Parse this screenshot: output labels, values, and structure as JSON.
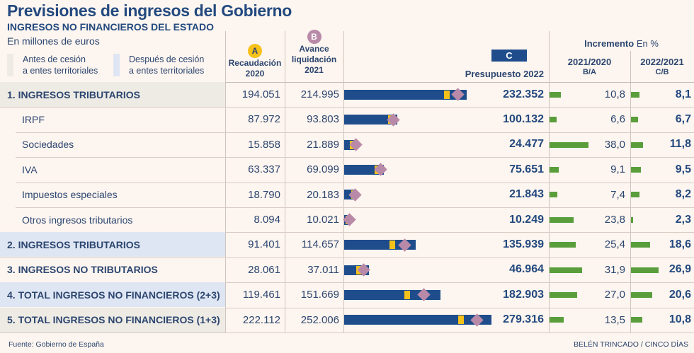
{
  "header": {
    "title": "Previsiones de ingresos del Gobierno",
    "subtitle": "INGRESOS NO FINANCIEROS DEL ESTADO",
    "units": "En millones de euros"
  },
  "legend": [
    {
      "label_line1": "Antes de cesión",
      "label_line2": "a entes territoriales",
      "color": "#eeebe4"
    },
    {
      "label_line1": "Después de cesión",
      "label_line2": "a entes territoriales",
      "color": "#dfe6f3"
    }
  ],
  "columns": {
    "a": {
      "badge": "A",
      "line1": "Recaudación",
      "line2": "2020",
      "color": "#f6c21a"
    },
    "b": {
      "badge": "B",
      "line1": "Avance",
      "line2": "liquidación",
      "line3": "2021",
      "color": "#b98aa8"
    },
    "c": {
      "badge": "C",
      "label": "Presupuesto 2022",
      "color": "#1f4d8c"
    },
    "increment": {
      "title_bold": "Incremento",
      "title_unit": "En %"
    },
    "pct1": {
      "line1": "2021/2020",
      "line2": "B/A"
    },
    "pct2": {
      "line1": "2022/2021",
      "line2": "C/B"
    }
  },
  "chart_data": {
    "type": "table",
    "title": "Previsiones de ingresos del Gobierno",
    "subtitle": "INGRESOS NO FINANCIEROS DEL ESTADO",
    "units": "millones de euros",
    "series": [
      {
        "name": "Recaudación 2020 (A)",
        "key": "a"
      },
      {
        "name": "Avance liquidación 2021 (B)",
        "key": "b"
      },
      {
        "name": "Presupuesto 2022 (C)",
        "key": "c"
      },
      {
        "name": "Incremento 2021/2020 B/A (%)",
        "key": "pct1"
      },
      {
        "name": "Incremento 2022/2021 C/B (%)",
        "key": "pct2"
      }
    ],
    "rows": [
      {
        "label": "1. INGRESOS TRIBUTARIOS",
        "style": "main",
        "bg": "before",
        "a": 194051,
        "b": 214995,
        "c": 232352,
        "a_text": "194.051",
        "b_text": "214.995",
        "c_text": "232.352",
        "pct1": 10.8,
        "pct2": 8.1,
        "pct1_text": "10,8",
        "pct2_text": "8,1"
      },
      {
        "label": "IRPF",
        "style": "sub",
        "bg": "none",
        "a": 87972,
        "b": 93803,
        "c": 100132,
        "a_text": "87.972",
        "b_text": "93.803",
        "c_text": "100.132",
        "pct1": 6.6,
        "pct2": 6.7,
        "pct1_text": "6,6",
        "pct2_text": "6,7"
      },
      {
        "label": "Sociedades",
        "style": "sub",
        "bg": "none",
        "a": 15858,
        "b": 21889,
        "c": 24477,
        "a_text": "15.858",
        "b_text": "21.889",
        "c_text": "24.477",
        "pct1": 38.0,
        "pct2": 11.8,
        "pct1_text": "38,0",
        "pct2_text": "11,8"
      },
      {
        "label": "IVA",
        "style": "sub",
        "bg": "none",
        "a": 63337,
        "b": 69099,
        "c": 75651,
        "a_text": "63.337",
        "b_text": "69.099",
        "c_text": "75.651",
        "pct1": 9.1,
        "pct2": 9.5,
        "pct1_text": "9,1",
        "pct2_text": "9,5"
      },
      {
        "label": "Impuestos especiales",
        "style": "sub",
        "bg": "none",
        "a": 18790,
        "b": 20183,
        "c": 21843,
        "a_text": "18.790",
        "b_text": "20.183",
        "c_text": "21.843",
        "pct1": 7.4,
        "pct2": 8.2,
        "pct1_text": "7,4",
        "pct2_text": "8,2"
      },
      {
        "label": "Otros ingresos tributarios",
        "style": "sub",
        "bg": "none",
        "a": 8094,
        "b": 10021,
        "c": 10249,
        "a_text": "8.094",
        "b_text": "10.021",
        "c_text": "10.249",
        "pct1": 23.8,
        "pct2": 2.3,
        "pct1_text": "23,8",
        "pct2_text": "2,3"
      },
      {
        "label": "2. INGRESOS TRIBUTARIOS",
        "style": "main",
        "bg": "after",
        "a": 91401,
        "b": 114657,
        "c": 135939,
        "a_text": "91.401",
        "b_text": "114.657",
        "c_text": "135.939",
        "pct1": 25.4,
        "pct2": 18.6,
        "pct1_text": "25,4",
        "pct2_text": "18,6"
      },
      {
        "label": "3. INGRESOS NO TRIBUTARIOS",
        "style": "main",
        "bg": "none",
        "a": 28061,
        "b": 37011,
        "c": 46964,
        "a_text": "28.061",
        "b_text": "37.011",
        "c_text": "46.964",
        "pct1": 31.9,
        "pct2": 26.9,
        "pct1_text": "31,9",
        "pct2_text": "26,9"
      },
      {
        "label": "4. TOTAL INGRESOS NO FINANCIEROS (2+3)",
        "style": "main",
        "bg": "after",
        "a": 119461,
        "b": 151669,
        "c": 182903,
        "a_text": "119.461",
        "b_text": "151.669",
        "c_text": "182.903",
        "pct1": 27.0,
        "pct2": 20.6,
        "pct1_text": "27,0",
        "pct2_text": "20,6"
      },
      {
        "label": "5. TOTAL INGRESOS NO FINANCIEROS (1+3)",
        "style": "main",
        "bg": "before",
        "a": 222112,
        "b": 252006,
        "c": 279316,
        "a_text": "222.112",
        "b_text": "252.006",
        "c_text": "279.316",
        "pct1": 13.5,
        "pct2": 10.8,
        "pct1_text": "13,5",
        "pct2_text": "10,8"
      }
    ],
    "bar_max": 279316,
    "pct_max": 38.0,
    "colors": {
      "bar_c": "#1f4d8c",
      "marker_a": "#f6c21a",
      "marker_b": "#b98aa8",
      "pct_bar": "#5a9e3c"
    }
  },
  "footer": {
    "source": "Fuente: Gobierno de España",
    "credit": "BELÉN TRINCADO / CINCO DÍAS"
  }
}
